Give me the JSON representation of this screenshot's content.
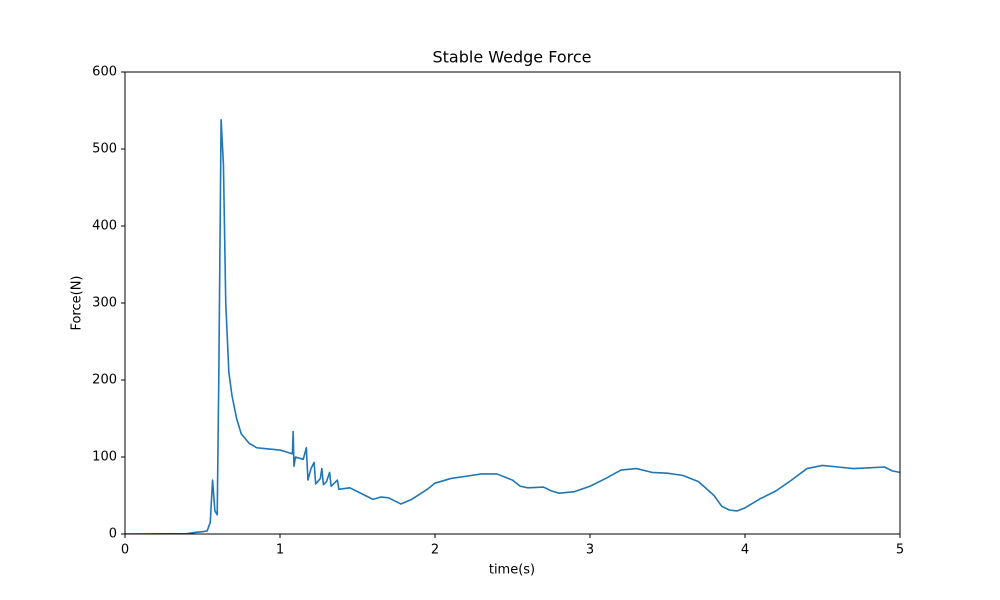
{
  "chart_data": {
    "type": "line",
    "title": "Stable Wedge Force",
    "x_label": "time(s)",
    "y_label": "Force(N)",
    "x": [
      0,
      0.4,
      0.45,
      0.5,
      0.53,
      0.55,
      0.565,
      0.58,
      0.595,
      0.605,
      0.62,
      0.635,
      0.65,
      0.67,
      0.69,
      0.72,
      0.75,
      0.8,
      0.85,
      0.9,
      0.95,
      1.0,
      1.05,
      1.08,
      1.085,
      1.09,
      1.1,
      1.15,
      1.17,
      1.18,
      1.2,
      1.22,
      1.23,
      1.26,
      1.27,
      1.28,
      1.3,
      1.32,
      1.33,
      1.37,
      1.38,
      1.45,
      1.5,
      1.55,
      1.6,
      1.65,
      1.7,
      1.75,
      1.78,
      1.85,
      1.95,
      2.0,
      2.1,
      2.2,
      2.3,
      2.4,
      2.5,
      2.55,
      2.6,
      2.7,
      2.75,
      2.8,
      2.9,
      3.0,
      3.1,
      3.2,
      3.3,
      3.4,
      3.5,
      3.6,
      3.7,
      3.8,
      3.85,
      3.9,
      3.95,
      4.0,
      4.1,
      4.2,
      4.3,
      4.4,
      4.5,
      4.6,
      4.7,
      4.8,
      4.9,
      4.95,
      5.0
    ],
    "values": [
      0,
      0.5,
      2,
      3,
      4,
      15,
      70,
      30,
      25,
      200,
      538,
      480,
      300,
      210,
      180,
      150,
      130,
      118,
      112,
      111,
      110,
      109,
      106,
      104,
      133,
      88,
      100,
      97,
      112,
      70,
      85,
      93,
      65,
      72,
      85,
      64,
      68,
      80,
      62,
      70,
      58,
      60,
      55,
      50,
      45,
      48,
      47,
      42,
      39,
      45,
      58,
      66,
      72,
      75,
      78,
      78,
      70,
      62,
      60,
      61,
      56,
      53,
      55,
      62,
      72,
      83,
      85,
      80,
      79,
      76,
      68,
      50,
      36,
      31,
      30,
      34,
      46,
      56,
      70,
      85,
      89,
      87,
      85,
      86,
      87,
      82,
      80
    ],
    "color": "#1f77b4",
    "xlim": [
      0,
      5
    ],
    "xticks": [
      0,
      1,
      2,
      3,
      4,
      5
    ],
    "ylim": [
      0,
      600
    ],
    "yticks": [
      0,
      100,
      200,
      300,
      400,
      500,
      600
    ],
    "grid": false
  }
}
